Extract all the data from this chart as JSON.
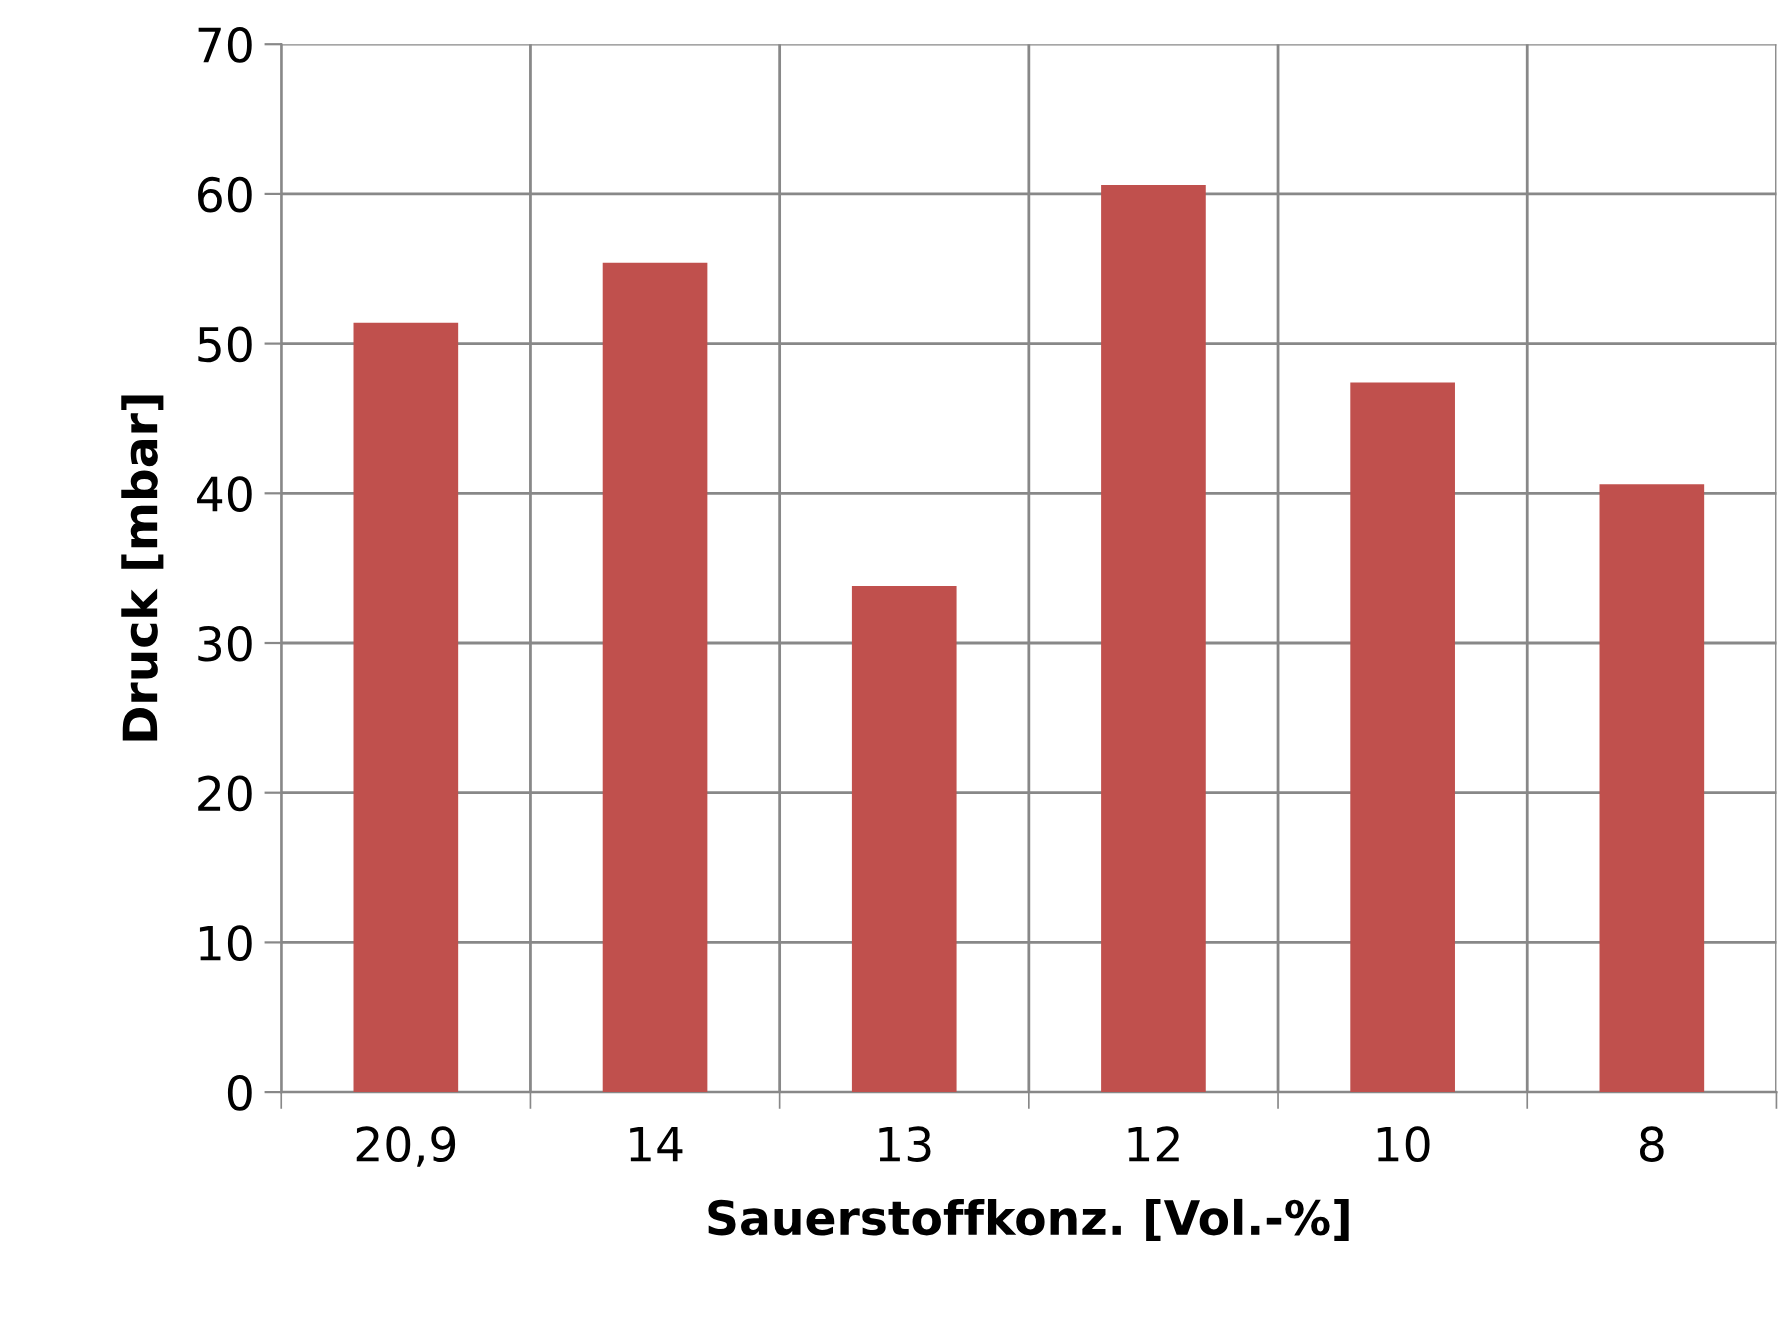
{
  "chart_data": {
    "type": "bar",
    "xlabel": "Sauerstoffkonz. [Vol.-%]",
    "ylabel": "Druck [mbar]",
    "categories": [
      "20,9",
      "14",
      "13",
      "12",
      "10",
      "8"
    ],
    "values": [
      51.4,
      55.4,
      33.8,
      60.6,
      47.4,
      40.6
    ],
    "color": "#c0504d",
    "ylim": [
      0,
      70
    ],
    "yticks": [
      0,
      10,
      20,
      30,
      40,
      50,
      60,
      70
    ],
    "grid": true
  }
}
